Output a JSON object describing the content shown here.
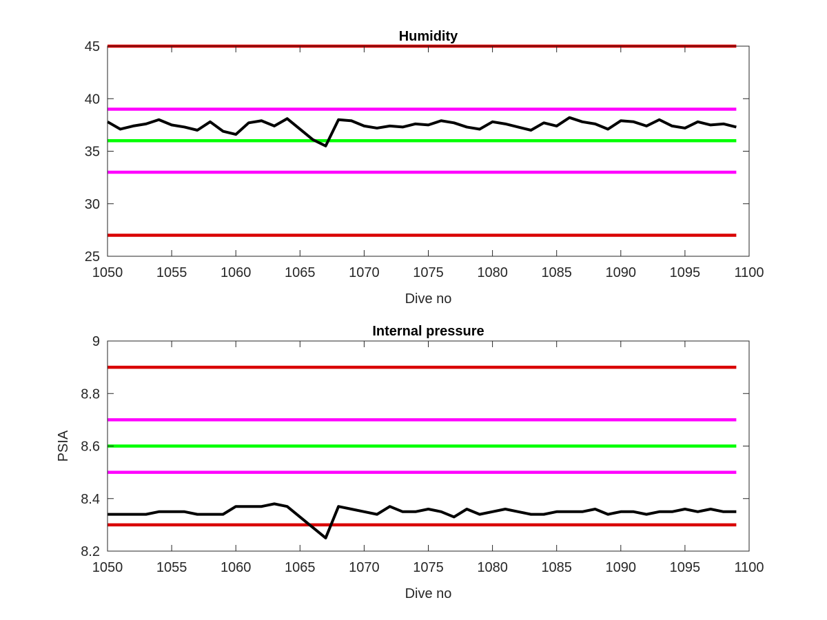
{
  "chart_data": [
    {
      "type": "line",
      "title": "Humidity",
      "xlabel": "Dive no",
      "ylabel": "",
      "xlim": [
        1050,
        1100
      ],
      "ylim": [
        25,
        45
      ],
      "xticks": [
        "1050",
        "1055",
        "1060",
        "1065",
        "1070",
        "1075",
        "1080",
        "1085",
        "1090",
        "1095",
        "1100"
      ],
      "yticks": [
        "25",
        "30",
        "35",
        "40",
        "45"
      ],
      "grid": false,
      "reference_lines": [
        {
          "y": 45,
          "color": "#d90000"
        },
        {
          "y": 39,
          "color": "#ff00ff"
        },
        {
          "y": 36,
          "color": "#00ff00"
        },
        {
          "y": 33,
          "color": "#ff00ff"
        },
        {
          "y": 27,
          "color": "#d90000"
        }
      ],
      "series": [
        {
          "color": "#000000",
          "x": [
            1050,
            1051,
            1052,
            1053,
            1054,
            1055,
            1056,
            1057,
            1058,
            1059,
            1060,
            1061,
            1062,
            1063,
            1064,
            1065,
            1066,
            1067,
            1068,
            1069,
            1070,
            1071,
            1072,
            1073,
            1074,
            1075,
            1076,
            1077,
            1078,
            1079,
            1080,
            1081,
            1082,
            1083,
            1084,
            1085,
            1086,
            1087,
            1088,
            1089,
            1090,
            1091,
            1092,
            1093,
            1094,
            1095,
            1096,
            1097,
            1098,
            1099
          ],
          "values": [
            37.8,
            37.1,
            37.4,
            37.6,
            38.0,
            37.5,
            37.3,
            37.0,
            37.8,
            36.9,
            36.6,
            37.7,
            37.9,
            37.4,
            38.1,
            37.1,
            36.1,
            35.5,
            38.0,
            37.9,
            37.4,
            37.2,
            37.4,
            37.3,
            37.6,
            37.5,
            37.9,
            37.7,
            37.3,
            37.1,
            37.8,
            37.6,
            37.3,
            37.0,
            37.7,
            37.4,
            38.2,
            37.8,
            37.6,
            37.1,
            37.9,
            37.8,
            37.4,
            38.0,
            37.4,
            37.2,
            37.8,
            37.5,
            37.6,
            37.3
          ]
        }
      ]
    },
    {
      "type": "line",
      "title": "Internal pressure",
      "xlabel": "Dive no",
      "ylabel": "PSIA",
      "xlim": [
        1050,
        1100
      ],
      "ylim": [
        8.2,
        9.0
      ],
      "xticks": [
        "1050",
        "1055",
        "1060",
        "1065",
        "1070",
        "1075",
        "1080",
        "1085",
        "1090",
        "1095",
        "1100"
      ],
      "yticks": [
        "8.2",
        "8.4",
        "8.6",
        "8.8",
        "9"
      ],
      "grid": false,
      "reference_lines": [
        {
          "y": 8.9,
          "color": "#d90000"
        },
        {
          "y": 8.7,
          "color": "#ff00ff"
        },
        {
          "y": 8.6,
          "color": "#00ff00"
        },
        {
          "y": 8.5,
          "color": "#ff00ff"
        },
        {
          "y": 8.3,
          "color": "#d90000"
        }
      ],
      "series": [
        {
          "color": "#000000",
          "x": [
            1050,
            1051,
            1052,
            1053,
            1054,
            1055,
            1056,
            1057,
            1058,
            1059,
            1060,
            1061,
            1062,
            1063,
            1064,
            1065,
            1066,
            1067,
            1068,
            1069,
            1070,
            1071,
            1072,
            1073,
            1074,
            1075,
            1076,
            1077,
            1078,
            1079,
            1080,
            1081,
            1082,
            1083,
            1084,
            1085,
            1086,
            1087,
            1088,
            1089,
            1090,
            1091,
            1092,
            1093,
            1094,
            1095,
            1096,
            1097,
            1098,
            1099
          ],
          "values": [
            8.34,
            8.34,
            8.34,
            8.34,
            8.35,
            8.35,
            8.35,
            8.34,
            8.34,
            8.34,
            8.37,
            8.37,
            8.37,
            8.38,
            8.37,
            8.33,
            8.29,
            8.25,
            8.37,
            8.36,
            8.35,
            8.34,
            8.37,
            8.35,
            8.35,
            8.36,
            8.35,
            8.33,
            8.36,
            8.34,
            8.35,
            8.36,
            8.35,
            8.34,
            8.34,
            8.35,
            8.35,
            8.35,
            8.36,
            8.34,
            8.35,
            8.35,
            8.34,
            8.35,
            8.35,
            8.36,
            8.35,
            8.36,
            8.35,
            8.35
          ]
        }
      ]
    }
  ]
}
